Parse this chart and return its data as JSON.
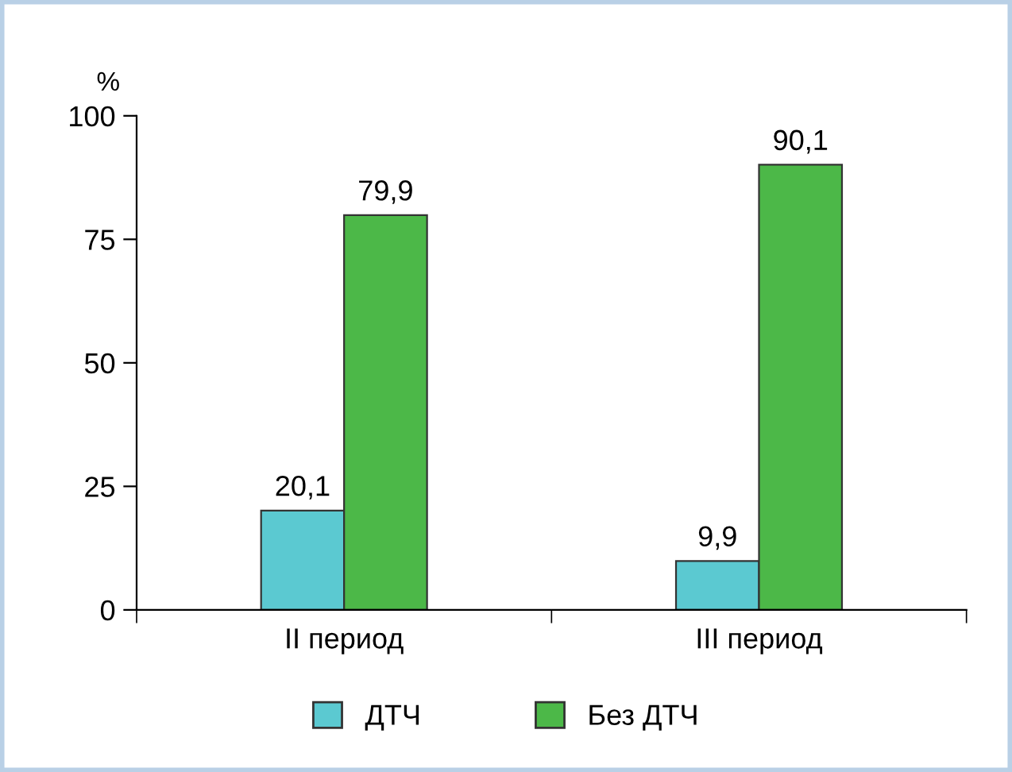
{
  "chart_data": {
    "type": "bar",
    "ylabel": "%",
    "categories": [
      "II период",
      "III период"
    ],
    "series": [
      {
        "name": "ДТЧ",
        "color": "#5bc9d1",
        "values": [
          20.1,
          9.9
        ],
        "value_labels": [
          "20,1",
          "9,9"
        ]
      },
      {
        "name": "Без ДТЧ",
        "color": "#4cb848",
        "values": [
          79.9,
          90.1
        ],
        "value_labels": [
          "79,9",
          "90,1"
        ]
      }
    ],
    "ylim": [
      0,
      100
    ],
    "yticks": [
      0,
      25,
      50,
      75,
      100
    ],
    "grid": false,
    "legend": "bottom"
  }
}
